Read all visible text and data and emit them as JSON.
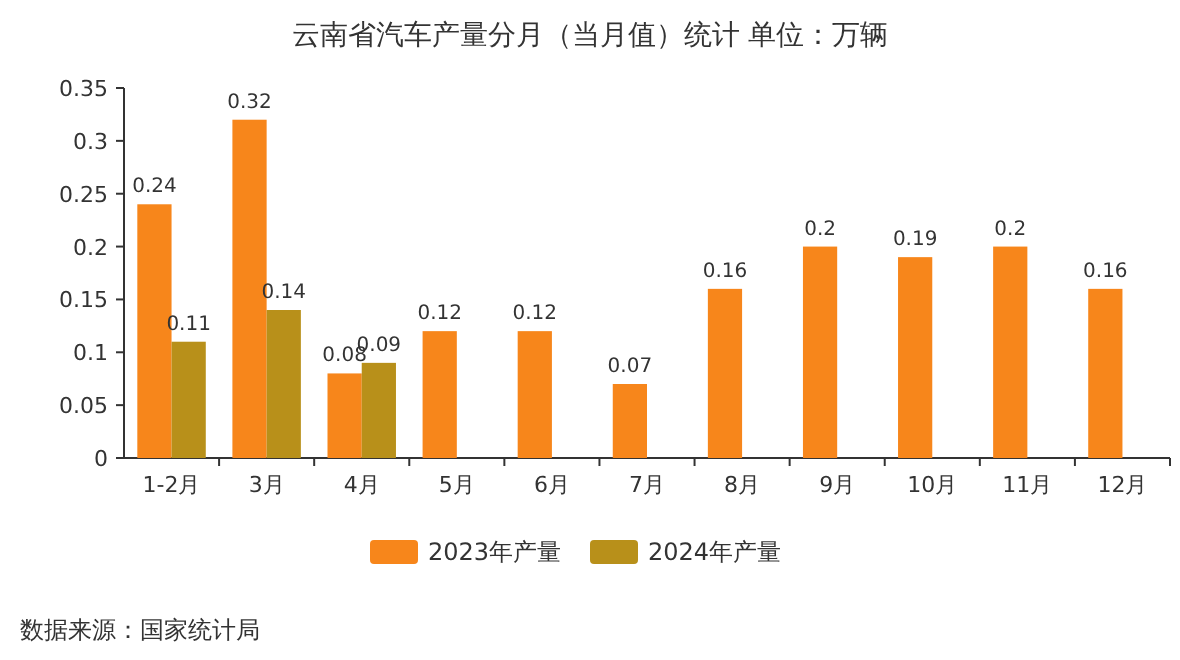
{
  "chart_data": {
    "type": "bar",
    "title": "云南省汽车产量分月（当月值）统计 单位：万辆",
    "categories": [
      "1-2月",
      "3月",
      "4月",
      "5月",
      "6月",
      "7月",
      "8月",
      "9月",
      "10月",
      "11月",
      "12月"
    ],
    "series": [
      {
        "name": "2023年产量",
        "color": "#f7861b",
        "values": [
          0.24,
          0.32,
          0.08,
          0.12,
          0.12,
          0.07,
          0.16,
          0.2,
          0.19,
          0.2,
          0.16
        ]
      },
      {
        "name": "2024年产量",
        "color": "#b8901a",
        "values": [
          0.11,
          0.14,
          0.09,
          null,
          null,
          null,
          null,
          null,
          null,
          null,
          null
        ]
      }
    ],
    "ylim": [
      0,
      0.35
    ],
    "yticks": [
      0,
      0.05,
      0.1,
      0.15,
      0.2,
      0.25,
      0.3,
      0.35
    ],
    "data_labels": true,
    "legend": "bottom",
    "annotations": [
      "数据来源：国家统计局"
    ]
  }
}
